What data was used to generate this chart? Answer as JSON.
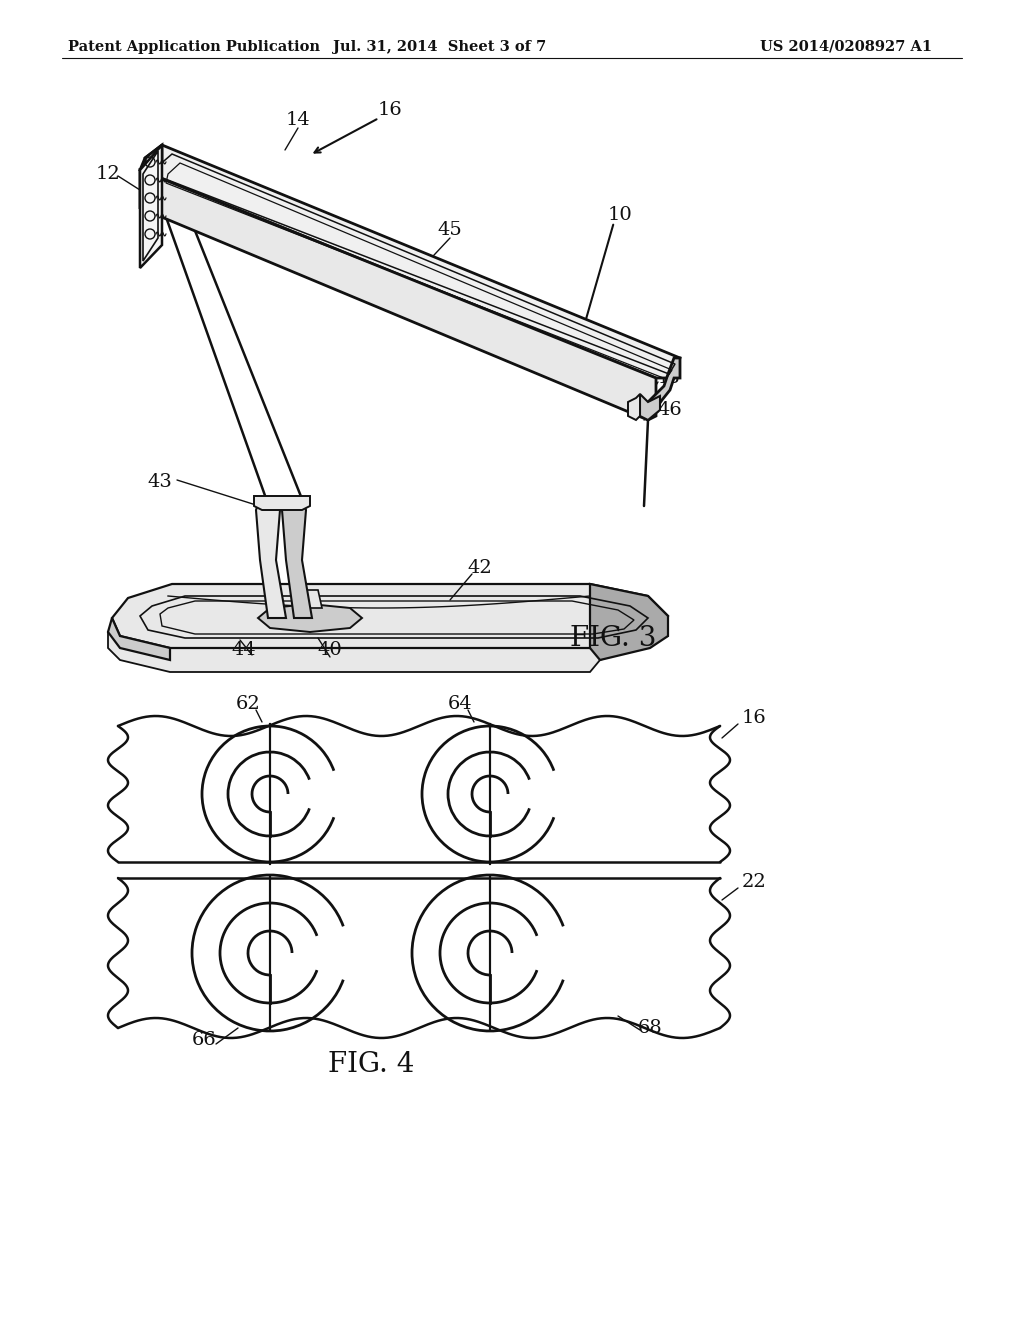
{
  "bg": "#ffffff",
  "lc": "#111111",
  "gray_light": "#e8e8e8",
  "gray_mid": "#cccccc",
  "gray_dark": "#aaaaaa",
  "header_left": "Patent Application Publication",
  "header_mid": "Jul. 31, 2014  Sheet 3 of 7",
  "header_right": "US 2014/0208927 A1",
  "fig3_label": "FIG. 3",
  "fig4_label": "FIG. 4"
}
